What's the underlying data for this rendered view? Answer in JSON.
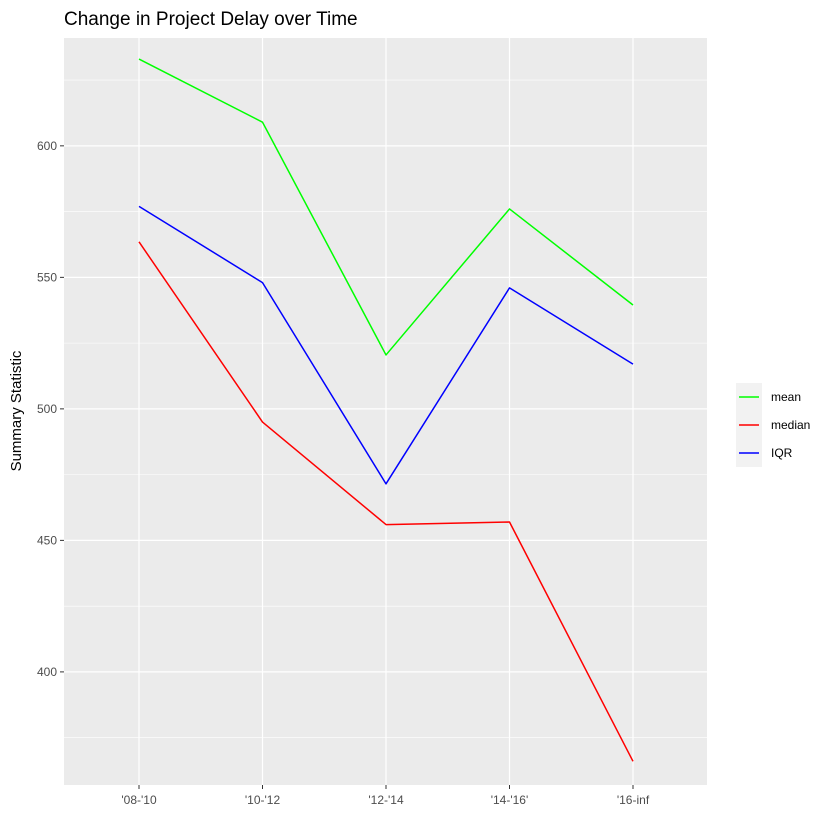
{
  "chart_data": {
    "type": "line",
    "title": "Change in Project Delay over Time",
    "xlabel": "",
    "ylabel": "Summary Statistic",
    "categories": [
      "'08-'10",
      "'10-'12",
      "'12-'14",
      "'14-'16'",
      "'16-inf"
    ],
    "y_ticks": [
      400,
      450,
      500,
      550,
      600
    ],
    "ylim": [
      357,
      641
    ],
    "grid": true,
    "legend_position": "right",
    "series": [
      {
        "name": "mean",
        "color": "#00ff00",
        "values": [
          633,
          609,
          520.5,
          576,
          539.5
        ]
      },
      {
        "name": "median",
        "color": "#ff0000",
        "values": [
          563.5,
          495,
          456,
          457,
          366
        ]
      },
      {
        "name": "IQR",
        "color": "#0000ff",
        "values": [
          577,
          548,
          471.5,
          546,
          517
        ]
      }
    ]
  }
}
